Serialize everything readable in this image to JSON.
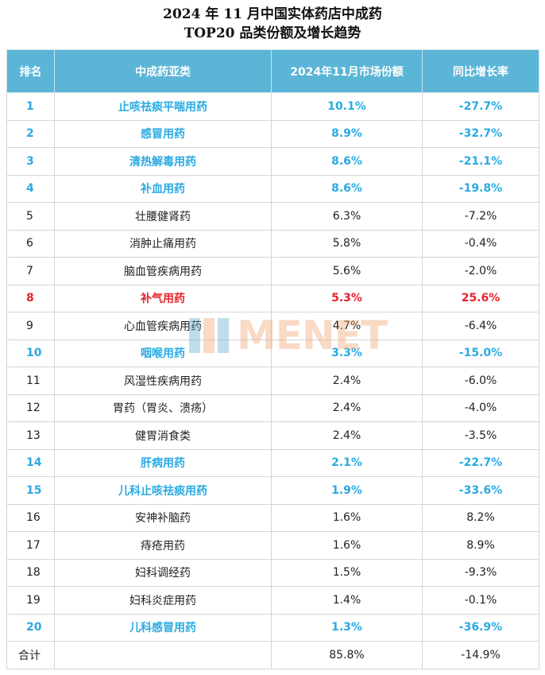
{
  "title": {
    "line1": "2024 年 11 月中国实体药店中成药",
    "line2": "TOP20 品类份额及增长趋势"
  },
  "table": {
    "headers": [
      "排名",
      "中成药亚类",
      "2024年11月市场份额",
      "同比增长率"
    ],
    "rows": [
      {
        "rank": "1",
        "category": "止咳祛痰平喘用药",
        "share": "10.1%",
        "growth": "-27.7%",
        "style": "blue"
      },
      {
        "rank": "2",
        "category": "感冒用药",
        "share": "8.9%",
        "growth": "-32.7%",
        "style": "blue"
      },
      {
        "rank": "3",
        "category": "清热解毒用药",
        "share": "8.6%",
        "growth": "-21.1%",
        "style": "blue"
      },
      {
        "rank": "4",
        "category": "补血用药",
        "share": "8.6%",
        "growth": "-19.8%",
        "style": "blue"
      },
      {
        "rank": "5",
        "category": "壮腰健肾药",
        "share": "6.3%",
        "growth": "-7.2%",
        "style": "normal"
      },
      {
        "rank": "6",
        "category": "消肿止痛用药",
        "share": "5.8%",
        "growth": "-0.4%",
        "style": "normal"
      },
      {
        "rank": "7",
        "category": "脑血管疾病用药",
        "share": "5.6%",
        "growth": "-2.0%",
        "style": "normal"
      },
      {
        "rank": "8",
        "category": "补气用药",
        "share": "5.3%",
        "growth": "25.6%",
        "style": "red"
      },
      {
        "rank": "9",
        "category": "心血管疾病用药",
        "share": "4.7%",
        "growth": "-6.4%",
        "style": "normal"
      },
      {
        "rank": "10",
        "category": "咽喉用药",
        "share": "3.3%",
        "growth": "-15.0%",
        "style": "blue"
      },
      {
        "rank": "11",
        "category": "风湿性疾病用药",
        "share": "2.4%",
        "growth": "-6.0%",
        "style": "normal"
      },
      {
        "rank": "12",
        "category": "胃药（胃炎、溃疡）",
        "share": "2.4%",
        "growth": "-4.0%",
        "style": "normal"
      },
      {
        "rank": "13",
        "category": "健胃消食类",
        "share": "2.4%",
        "growth": "-3.5%",
        "style": "normal"
      },
      {
        "rank": "14",
        "category": "肝病用药",
        "share": "2.1%",
        "growth": "-22.7%",
        "style": "blue"
      },
      {
        "rank": "15",
        "category": "儿科止咳祛痰用药",
        "share": "1.9%",
        "growth": "-33.6%",
        "style": "blue"
      },
      {
        "rank": "16",
        "category": "安神补脑药",
        "share": "1.6%",
        "growth": "8.2%",
        "style": "normal"
      },
      {
        "rank": "17",
        "category": "痔疮用药",
        "share": "1.6%",
        "growth": "8.9%",
        "style": "normal"
      },
      {
        "rank": "18",
        "category": "妇科调经药",
        "share": "1.5%",
        "growth": "-9.3%",
        "style": "normal"
      },
      {
        "rank": "19",
        "category": "妇科炎症用药",
        "share": "1.4%",
        "growth": "-0.1%",
        "style": "normal"
      },
      {
        "rank": "20",
        "category": "儿科感冒用药",
        "share": "1.3%",
        "growth": "-36.9%",
        "style": "blue"
      }
    ],
    "total": {
      "label": "合计",
      "category": "",
      "share": "85.8%",
      "growth": "-14.9%"
    }
  },
  "colors": {
    "header_bg": "#5bb5d6",
    "highlight_blue": "#2aaae2",
    "highlight_red": "#e8232b"
  },
  "watermark": {
    "text": "MENET",
    "icon": "menet-logo-icon"
  }
}
